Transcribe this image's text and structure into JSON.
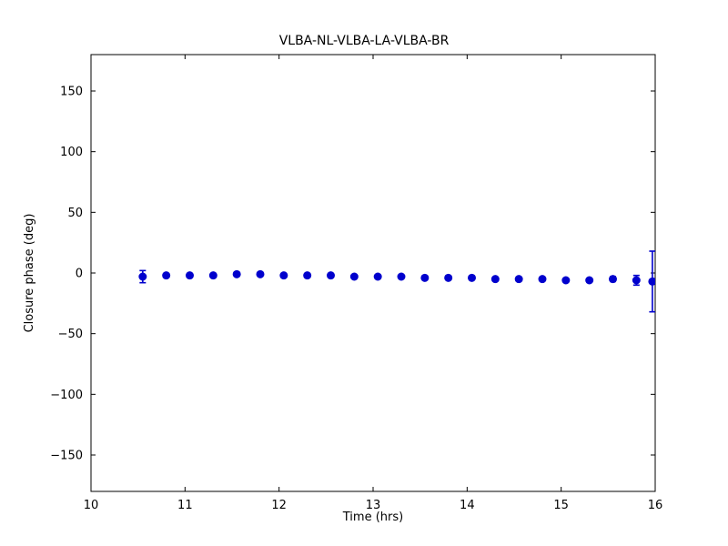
{
  "figure": {
    "background": "#ffffff"
  },
  "chart_data": {
    "type": "scatter",
    "title": "VLBA-NL-VLBA-LA-VLBA-BR",
    "xlabel": "Time (hrs)",
    "ylabel": "Closure phase (deg)",
    "xlim": [
      10,
      16
    ],
    "ylim": [
      -180,
      180
    ],
    "xticks": [
      10,
      11,
      12,
      13,
      14,
      15,
      16
    ],
    "yticks": [
      -150,
      -100,
      -50,
      0,
      50,
      100,
      150
    ],
    "grid": false,
    "legend": null,
    "marker_color": "#0000cd",
    "errorbar_color": "#0000cd",
    "axis_color": "#000000",
    "series": [
      {
        "name": "closure-phase",
        "x": [
          10.55,
          10.8,
          11.05,
          11.3,
          11.55,
          11.8,
          12.05,
          12.3,
          12.55,
          12.8,
          13.05,
          13.3,
          13.55,
          13.8,
          14.05,
          14.3,
          14.55,
          14.8,
          15.05,
          15.3,
          15.55,
          15.8,
          15.97
        ],
        "y": [
          -3,
          -2,
          -2,
          -2,
          -1,
          -1,
          -2,
          -2,
          -2,
          -3,
          -3,
          -3,
          -4,
          -4,
          -4,
          -5,
          -5,
          -5,
          -6,
          -6,
          -5,
          -6,
          -7
        ],
        "yerr": [
          5,
          1.5,
          1.5,
          1.5,
          1.5,
          1.5,
          1.5,
          1.5,
          1.5,
          1.5,
          1.5,
          1.5,
          1.5,
          1.5,
          1.5,
          1.5,
          1.5,
          1.5,
          1.5,
          1.5,
          2,
          4,
          25
        ]
      }
    ]
  }
}
